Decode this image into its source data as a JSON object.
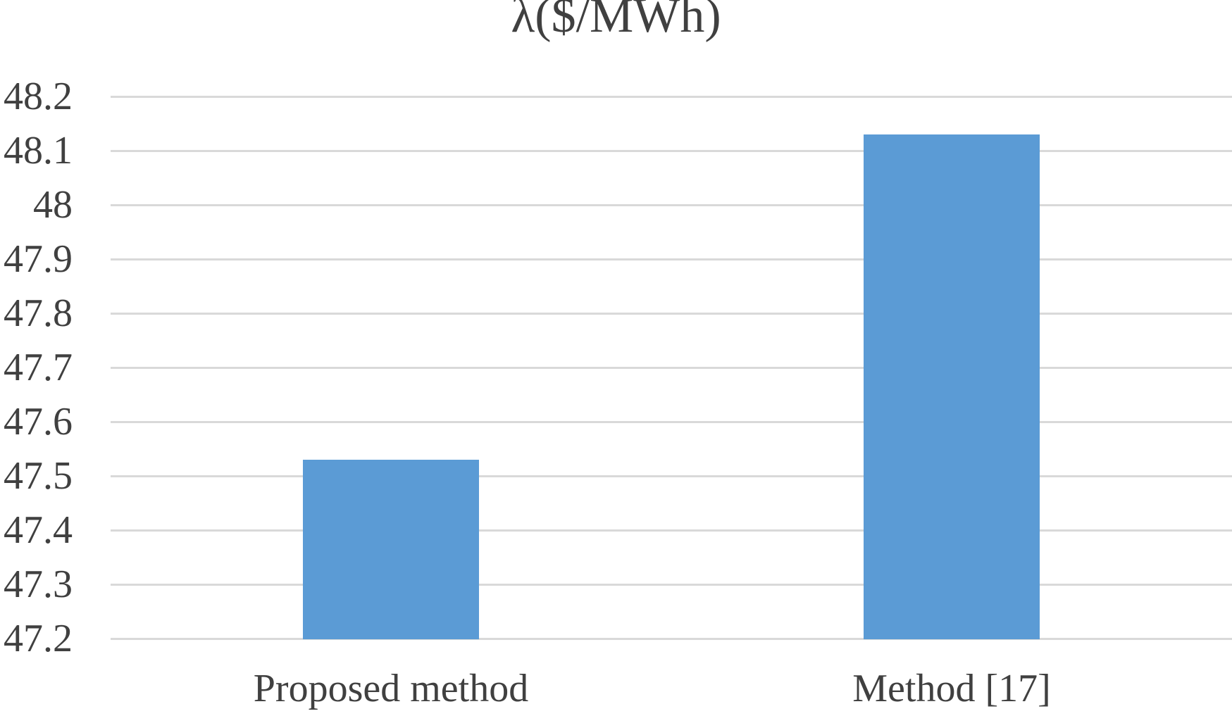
{
  "chart_data": {
    "type": "bar",
    "title": "λ($/MWh)",
    "categories": [
      "Proposed method",
      "Method [17]"
    ],
    "values": [
      47.53,
      48.13
    ],
    "ylim": [
      47.2,
      48.2
    ],
    "ytick_labels_top_to_bottom": [
      "48.2",
      "48.1",
      "48",
      "47.9",
      "47.8",
      "47.7",
      "47.6",
      "47.5",
      "47.4",
      "47.3",
      "47.2"
    ],
    "xlabel": "",
    "ylabel": "",
    "legend": "none",
    "grid": "horizontal",
    "colors": {
      "bar": "#5b9bd5",
      "gridline": "#d9d9d9",
      "text": "#404040",
      "background": "#ffffff"
    }
  }
}
